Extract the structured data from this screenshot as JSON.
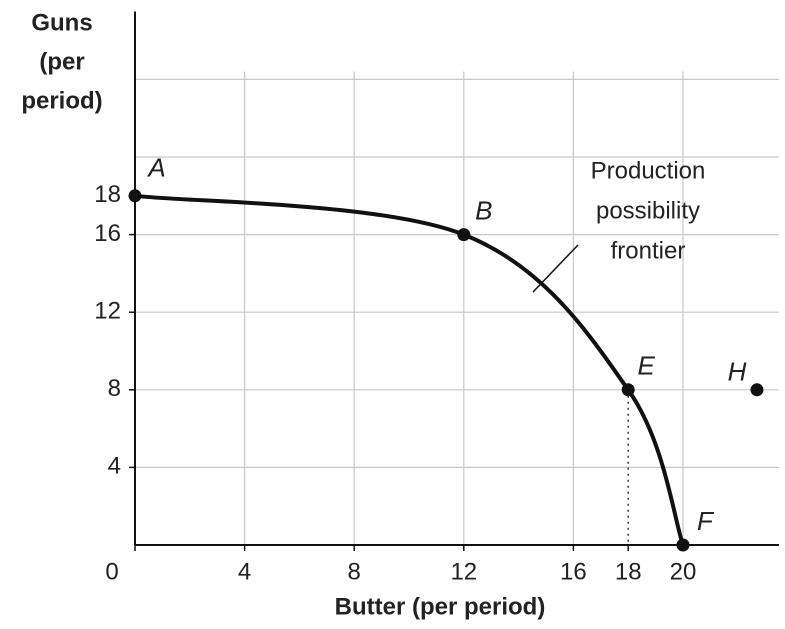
{
  "chart_data": {
    "type": "line",
    "y_label_lines": [
      "Guns",
      "(per",
      "period)"
    ],
    "x_label": "Butter (per period)",
    "annotation_lines": [
      "Production",
      "possibility",
      "frontier"
    ],
    "xlim": [
      0,
      23.5
    ],
    "ylim": [
      0,
      27.5
    ],
    "xticks": [
      0,
      4,
      8,
      12,
      16,
      18,
      20
    ],
    "yticks": [
      4,
      8,
      12,
      16,
      18
    ],
    "xgrid": [
      4,
      8,
      12,
      16,
      20
    ],
    "ygrid": [
      4,
      8,
      12,
      16,
      20,
      24
    ],
    "grid": true,
    "curve": {
      "x": [
        0,
        12,
        18,
        20
      ],
      "y": [
        18,
        16,
        8,
        0
      ],
      "color": "#111111",
      "smooth": true
    },
    "points": [
      {
        "label": "A",
        "x": 0,
        "y": 18
      },
      {
        "label": "B",
        "x": 12,
        "y": 16
      },
      {
        "label": "E",
        "x": 18,
        "y": 8,
        "drop_line": true
      },
      {
        "label": "F",
        "x": 20,
        "y": 0
      },
      {
        "label": "H",
        "x": 22.7,
        "y": 8
      }
    ],
    "point_color": "#111111"
  }
}
